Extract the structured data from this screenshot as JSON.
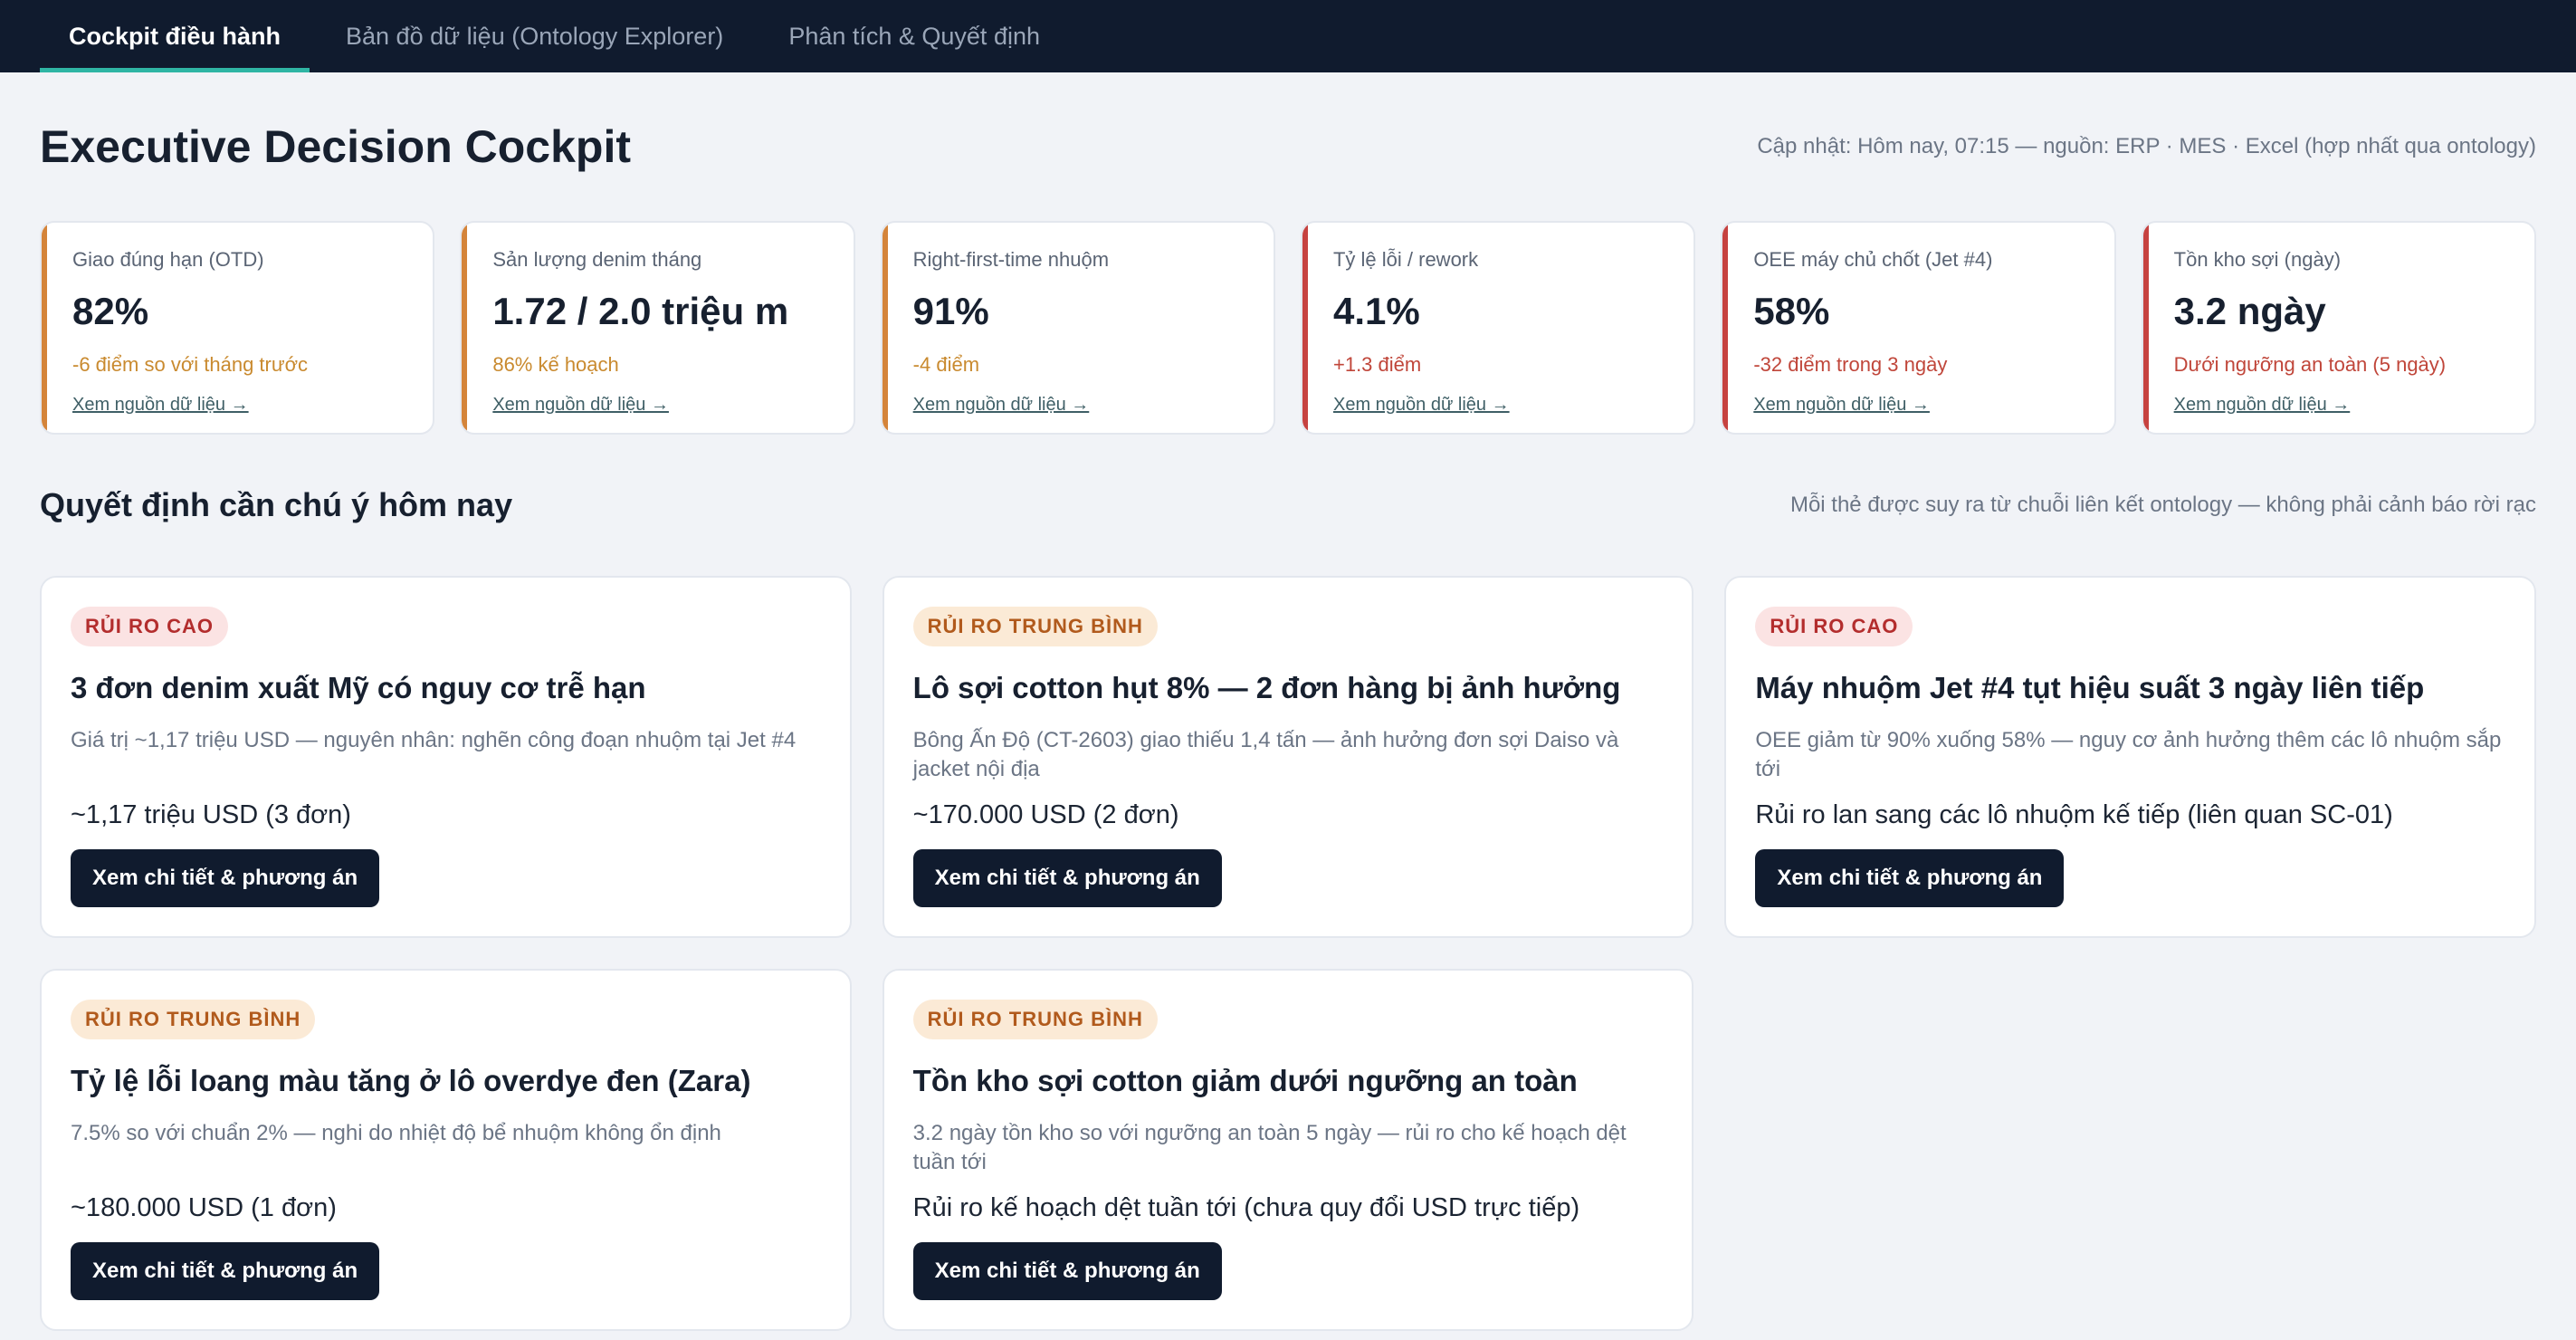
{
  "nav": {
    "tabs": [
      {
        "label": "Cockpit điều hành"
      },
      {
        "label": "Bản đồ dữ liệu (Ontology Explorer)"
      },
      {
        "label": "Phân tích & Quyết định"
      }
    ]
  },
  "header": {
    "title": "Executive Decision Cockpit",
    "updated": "Cập nhật: Hôm nay, 07:15 — nguồn: ERP · MES · Excel (hợp nhất qua ontology)"
  },
  "kpis": [
    {
      "label": "Giao đúng hạn (OTD)",
      "value": "82%",
      "delta": "-6 điểm so với tháng trước",
      "link": "Xem nguồn dữ liệu →",
      "status": "amber"
    },
    {
      "label": "Sản lượng denim tháng",
      "value": "1.72 / 2.0 triệu m",
      "delta": "86% kế hoạch",
      "link": "Xem nguồn dữ liệu →",
      "status": "amber"
    },
    {
      "label": "Right-first-time nhuộm",
      "value": "91%",
      "delta": "-4 điểm",
      "link": "Xem nguồn dữ liệu →",
      "status": "amber"
    },
    {
      "label": "Tỷ lệ lỗi / rework",
      "value": "4.1%",
      "delta": "+1.3 điểm",
      "link": "Xem nguồn dữ liệu →",
      "status": "red"
    },
    {
      "label": "OEE máy chủ chốt (Jet #4)",
      "value": "58%",
      "delta": "-32 điểm trong 3 ngày",
      "link": "Xem nguồn dữ liệu →",
      "status": "red"
    },
    {
      "label": "Tồn kho sợi (ngày)",
      "value": "3.2 ngày",
      "delta": "Dưới ngưỡng an toàn (5 ngày)",
      "link": "Xem nguồn dữ liệu →",
      "status": "red"
    }
  ],
  "section": {
    "title": "Quyết định cần chú ý hôm nay",
    "note": "Mỗi thẻ được suy ra từ chuỗi liên kết ontology — không phải cảnh báo rời rạc"
  },
  "cards": [
    {
      "badge": "RỦI RO CAO",
      "title": "3 đơn denim xuất Mỹ có nguy cơ trễ hạn",
      "desc": "Giá trị ~1,17 triệu USD — nguyên nhân: nghẽn công đoạn nhuộm tại Jet #4",
      "impact": "~1,17 triệu USD (3 đơn)",
      "button": "Xem chi tiết & phương án"
    },
    {
      "badge": "RỦI RO TRUNG BÌNH",
      "title": "Lô sợi cotton hụt 8% — 2 đơn hàng bị ảnh hưởng",
      "desc": "Bông Ấn Độ (CT-2603) giao thiếu 1,4 tấn — ảnh hưởng đơn sợi Daiso và jacket nội địa",
      "impact": "~170.000 USD (2 đơn)",
      "button": "Xem chi tiết & phương án"
    },
    {
      "badge": "RỦI RO CAO",
      "title": "Máy nhuộm Jet #4 tụt hiệu suất 3 ngày liên tiếp",
      "desc": "OEE giảm từ 90% xuống 58% — nguy cơ ảnh hưởng thêm các lô nhuộm sắp tới",
      "impact": "Rủi ro lan sang các lô nhuộm kế tiếp (liên quan SC-01)",
      "button": "Xem chi tiết & phương án"
    },
    {
      "badge": "RỦI RO TRUNG BÌNH",
      "title": "Tỷ lệ lỗi loang màu tăng ở lô overdye đen (Zara)",
      "desc": "7.5% so với chuẩn 2% — nghi do nhiệt độ bể nhuộm không ổn định",
      "impact": "~180.000 USD (1 đơn)",
      "button": "Xem chi tiết & phương án"
    },
    {
      "badge": "RỦI RO TRUNG BÌNH",
      "title": "Tồn kho sợi cotton giảm dưới ngưỡng an toàn",
      "desc": "3.2 ngày tồn kho so với ngưỡng an toàn 5 ngày — rủi ro cho kế hoạch dệt tuần tới",
      "impact": "Rủi ro kế hoạch dệt tuần tới (chưa quy đổi USD trực tiếp)",
      "button": "Xem chi tiết & phương án"
    }
  ]
}
